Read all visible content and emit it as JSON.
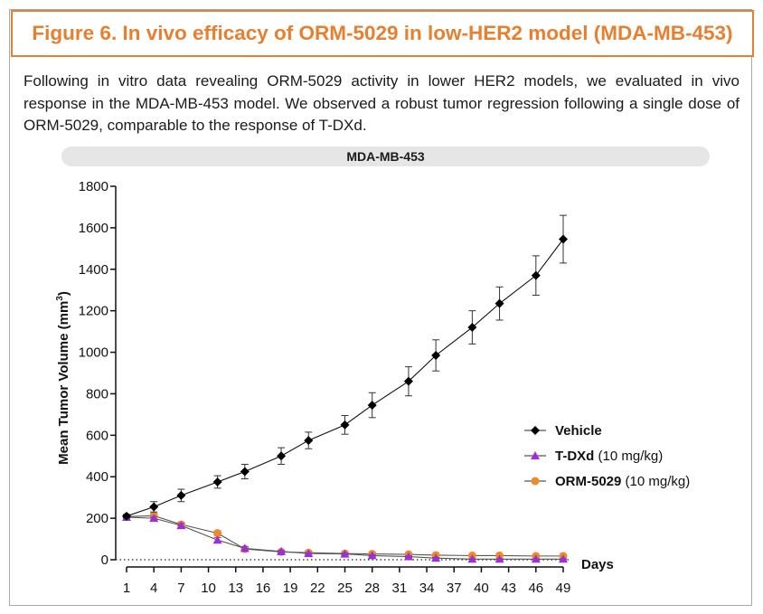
{
  "figure_title": "Figure 6. In vivo efficacy of ORM-5029 in low-HER2 model (MDA-MB-453)",
  "description": "Following in vitro data revealing ORM-5029 activity in lower HER2 models, we evaluated in vivo response in the MDA-MB-453 model. We observed a robust tumor regression following a single dose of ORM-5029, comparable to the response of T-DXd.",
  "panel_label": "MDA-MB-453",
  "colors": {
    "accent": "#e87f2e",
    "vehicle": "#000000",
    "tdxd": "#9b30d9",
    "orm5029": "#f08a28"
  },
  "chart_data": {
    "type": "line",
    "title": "MDA-MB-453",
    "xlabel": "Days",
    "ylabel": "Mean Tumor Volume (mm³)",
    "ylabel_main": "Mean Tumor Volume (mm",
    "ylabel_sup": "3",
    "ylabel_close": ")",
    "ylim": [
      0,
      1800
    ],
    "yticks": [
      0,
      200,
      400,
      600,
      800,
      1000,
      1200,
      1400,
      1600,
      1800
    ],
    "ytick_labels": [
      "0",
      "200",
      "400",
      "600",
      "800",
      "1000",
      "1200",
      "1400",
      "1600",
      "1800"
    ],
    "xticks": [
      1,
      4,
      7,
      10,
      13,
      16,
      19,
      22,
      25,
      28,
      31,
      34,
      37,
      40,
      43,
      46,
      49
    ],
    "xtick_labels": [
      "1",
      "4",
      "7",
      "10",
      "13",
      "16",
      "19",
      "22",
      "25",
      "28",
      "31",
      "34",
      "37",
      "40",
      "43",
      "46",
      "49"
    ],
    "baseline": 0,
    "series": [
      {
        "name": "Vehicle",
        "dose": "",
        "marker": "diamond",
        "color": "#000000",
        "x": [
          1,
          4,
          7,
          11,
          14,
          18,
          21,
          25,
          28,
          32,
          35,
          39,
          42,
          46,
          49
        ],
        "y": [
          210,
          255,
          310,
          375,
          425,
          500,
          575,
          650,
          745,
          860,
          985,
          1120,
          1235,
          1370,
          1545
        ],
        "err": [
          8,
          25,
          30,
          30,
          35,
          40,
          40,
          45,
          60,
          70,
          75,
          80,
          80,
          95,
          115
        ]
      },
      {
        "name": "T-DXd",
        "dose": "(10 mg/kg)",
        "marker": "triangle",
        "color": "#9b30d9",
        "x": [
          1,
          4,
          7,
          11,
          14,
          18,
          21,
          25,
          28,
          32,
          35,
          39,
          42,
          46,
          49
        ],
        "y": [
          205,
          200,
          165,
          95,
          55,
          40,
          30,
          28,
          20,
          15,
          8,
          3,
          3,
          3,
          3
        ],
        "err": [
          5,
          8,
          10,
          12,
          8,
          5,
          5,
          5,
          4,
          4,
          3,
          2,
          2,
          2,
          2
        ]
      },
      {
        "name": "ORM-5029",
        "dose": "(10 mg/kg)",
        "marker": "circle",
        "color": "#f08a28",
        "x": [
          1,
          4,
          7,
          11,
          14,
          18,
          21,
          25,
          28,
          32,
          35,
          39,
          42,
          46,
          49
        ],
        "y": [
          208,
          212,
          170,
          128,
          52,
          38,
          34,
          30,
          28,
          26,
          22,
          20,
          20,
          18,
          18
        ],
        "err": [
          5,
          12,
          10,
          12,
          8,
          5,
          5,
          4,
          4,
          4,
          3,
          3,
          3,
          3,
          3
        ]
      }
    ],
    "legend_position": "right"
  }
}
